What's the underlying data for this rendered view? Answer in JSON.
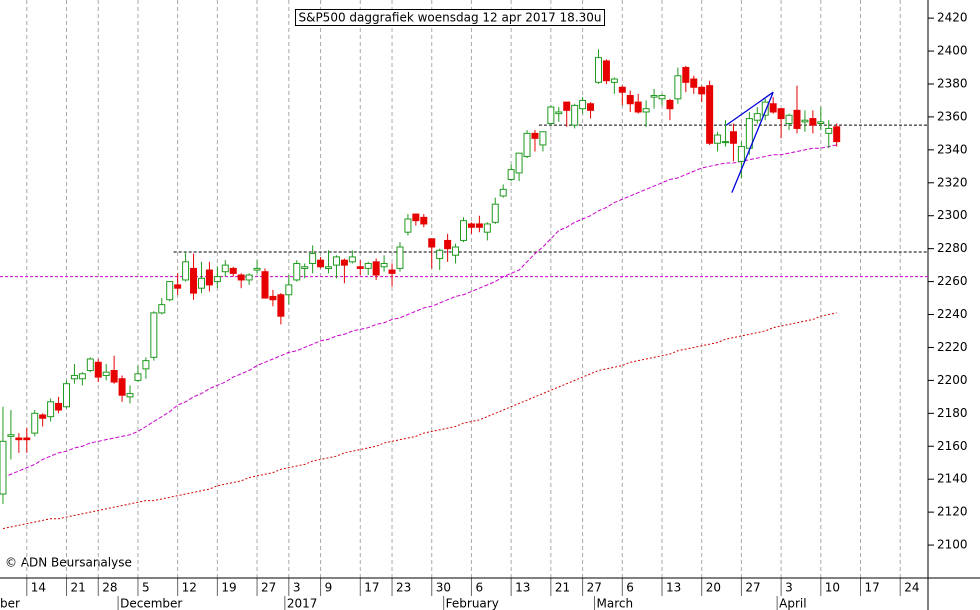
{
  "chart_data": {
    "type": "candlestick",
    "title": "S&P500 daggrafiek woensdag 12 apr 2017 18.30u",
    "copyright": "© ADN Beursanalyse",
    "categories": [
      null,
      null,
      null,
      "14",
      null,
      null,
      null,
      null,
      "21",
      null,
      null,
      null,
      "28",
      null,
      null,
      null,
      null,
      "5",
      null,
      null,
      null,
      null,
      "12",
      null,
      null,
      null,
      null,
      "19",
      null,
      null,
      null,
      null,
      "27",
      null,
      null,
      null,
      "3",
      null,
      null,
      null,
      "9",
      null,
      null,
      null,
      null,
      "17",
      null,
      null,
      null,
      "23",
      null,
      null,
      null,
      null,
      "30",
      null,
      null,
      null,
      null,
      "6",
      null,
      null,
      null,
      null,
      "13",
      null,
      null,
      null,
      null,
      "21",
      null,
      null,
      null,
      "27",
      null,
      null,
      null,
      null,
      "6",
      null,
      null,
      null,
      null,
      "13",
      null,
      null,
      null,
      null,
      "20",
      null,
      null,
      null,
      null,
      "27",
      null,
      null,
      null,
      null,
      "3",
      null,
      null,
      null,
      null,
      "10",
      null,
      null,
      null,
      null,
      "17",
      null,
      null,
      null,
      null,
      "24",
      null,
      null,
      null
    ],
    "months": [
      {
        "value": 15,
        "label": "December"
      },
      {
        "value": 36,
        "label": "2017"
      },
      {
        "value": 56,
        "label": "February"
      },
      {
        "value": 75,
        "label": "March"
      },
      {
        "value": 98,
        "label": "April"
      }
    ],
    "month_cut": "ber",
    "open": [
      2131,
      2166,
      2165,
      2165,
      2168,
      2179,
      2178,
      2186,
      2184,
      2201,
      2201,
      2206,
      2211,
      2203,
      2206,
      2201,
      2190,
      2200,
      2207,
      2214,
      2241,
      2249,
      2258,
      2261,
      2268,
      2256,
      2267,
      2260,
      2266,
      2268,
      2264,
      2261,
      2267,
      2266,
      2251,
      2252,
      2252,
      2261,
      2268,
      2271,
      2273,
      2268,
      2270,
      2273,
      2272,
      2269,
      2268,
      2272,
      2269,
      2267,
      2268,
      2290,
      2301,
      2299,
      2286,
      2274,
      2285,
      2276,
      2285,
      2295,
      2295,
      2290,
      2296,
      2312,
      2322,
      2326,
      2336,
      2350,
      2343,
      2356,
      2362,
      2369,
      2355,
      2365,
      2368,
      2381,
      2394,
      2381,
      2378,
      2373,
      2369,
      2363,
      2372,
      2371,
      2370,
      2371,
      2390,
      2383,
      2378,
      2379,
      2344,
      2345,
      2351,
      2333,
      2341,
      2358,
      2361,
      2368,
      2365,
      2356,
      2364,
      2357,
      2359,
      2356,
      2350,
      2354,
      null,
      null,
      null,
      null,
      null,
      null,
      null,
      null,
      null,
      null,
      null
    ],
    "high": [
      2184,
      2182,
      2168,
      2171,
      2182,
      2180,
      2189,
      2190,
      2200,
      2210,
      2205,
      2214,
      2213,
      2210,
      2215,
      2203,
      2197,
      2209,
      2214,
      2242,
      2250,
      2260,
      2265,
      2278,
      2277,
      2272,
      2272,
      2269,
      2273,
      2269,
      2265,
      2265,
      2273,
      2268,
      2255,
      2253,
      2264,
      2273,
      2271,
      2282,
      2275,
      2279,
      2276,
      2274,
      2279,
      2273,
      2272,
      2274,
      2276,
      2271,
      2284,
      2301,
      2301,
      2301,
      2286,
      2280,
      2289,
      2283,
      2299,
      2296,
      2300,
      2296,
      2311,
      2319,
      2331,
      2338,
      2352,
      2352,
      2351,
      2367,
      2366,
      2369,
      2368,
      2372,
      2369,
      2401,
      2395,
      2384,
      2379,
      2376,
      2374,
      2370,
      2377,
      2374,
      2371,
      2390,
      2391,
      2385,
      2379,
      2382,
      2351,
      2358,
      2356,
      2345,
      2363,
      2366,
      2371,
      2372,
      2365,
      2362,
      2379,
      2364,
      2364,
      2366,
      2358,
      2356,
      null,
      null,
      null,
      null,
      null,
      null,
      null,
      null,
      null,
      null,
      null
    ],
    "low": [
      2125,
      2152,
      2156,
      2156,
      2166,
      2172,
      2175,
      2180,
      2183,
      2198,
      2197,
      2205,
      2199,
      2200,
      2198,
      2187,
      2186,
      2199,
      2201,
      2212,
      2240,
      2248,
      2252,
      2260,
      2249,
      2253,
      2254,
      2256,
      2263,
      2263,
      2256,
      2258,
      2265,
      2250,
      2245,
      2234,
      2246,
      2260,
      2262,
      2265,
      2268,
      2265,
      2262,
      2259,
      2271,
      2264,
      2264,
      2261,
      2266,
      2257,
      2266,
      2288,
      2294,
      2293,
      2268,
      2267,
      2272,
      2271,
      2284,
      2289,
      2290,
      2285,
      2295,
      2311,
      2321,
      2321,
      2335,
      2339,
      2339,
      2355,
      2357,
      2354,
      2353,
      2362,
      2359,
      2380,
      2380,
      2374,
      2367,
      2363,
      2362,
      2354,
      2365,
      2367,
      2358,
      2368,
      2375,
      2374,
      2369,
      2343,
      2339,
      2342,
      2333,
      2323,
      2337,
      2356,
      2358,
      2362,
      2347,
      2352,
      2350,
      2351,
      2350,
      2352,
      2341,
      2342,
      null,
      null,
      null,
      null,
      null,
      null,
      null,
      null,
      null,
      null,
      null
    ],
    "close": [
      2163,
      2167,
      2164,
      2164,
      2180,
      2177,
      2187,
      2182,
      2198,
      2203,
      2204,
      2213,
      2202,
      2205,
      2199,
      2191,
      2192,
      2204,
      2212,
      2241,
      2246,
      2260,
      2256,
      2272,
      2253,
      2262,
      2258,
      2263,
      2270,
      2265,
      2261,
      2264,
      2268,
      2250,
      2249,
      2239,
      2258,
      2271,
      2269,
      2277,
      2269,
      2269,
      2275,
      2270,
      2275,
      2268,
      2271,
      2264,
      2271,
      2265,
      2281,
      2298,
      2297,
      2295,
      2281,
      2279,
      2280,
      2281,
      2297,
      2293,
      2293,
      2295,
      2307,
      2316,
      2328,
      2338,
      2350,
      2347,
      2351,
      2366,
      2363,
      2364,
      2367,
      2370,
      2364,
      2396,
      2382,
      2383,
      2375,
      2368,
      2363,
      2365,
      2373,
      2373,
      2365,
      2385,
      2381,
      2378,
      2374,
      2344,
      2349,
      2345,
      2344,
      2342,
      2359,
      2362,
      2369,
      2363,
      2359,
      2361,
      2353,
      2358,
      2355,
      2357,
      2353,
      2345,
      null,
      null,
      null,
      null,
      null,
      null,
      null,
      null,
      null,
      null,
      null
    ],
    "up_color": "#1f9a1f",
    "down_color": "#e60000",
    "averages": [
      {
        "color": "#cc00cc",
        "dash": "dashed",
        "values": [
          2141,
          2143,
          2145,
          2147,
          2149,
          2152,
          2154,
          2156,
          2157,
          2159,
          2160,
          2162,
          2163,
          2164,
          2165,
          2166,
          2167,
          2169,
          2172,
          2175,
          2178,
          2181,
          2185,
          2187,
          2190,
          2192,
          2195,
          2197,
          2199,
          2202,
          2204,
          2206,
          2209,
          2211,
          2213,
          2215,
          2217,
          2218,
          2220,
          2222,
          2224,
          2225,
          2227,
          2228,
          2230,
          2231,
          2232,
          2234,
          2235,
          2237,
          2238,
          2240,
          2242,
          2244,
          2245,
          2247,
          2249,
          2251,
          2252,
          2254,
          2256,
          2258,
          2260,
          2263,
          2265,
          2267,
          2272,
          2277,
          2281,
          2286,
          2291,
          2293,
          2296,
          2298,
          2300,
          2303,
          2305,
          2308,
          2310,
          2312,
          2314,
          2316,
          2318,
          2320,
          2322,
          2323,
          2325,
          2327,
          2329,
          2330,
          2331,
          2332,
          2332,
          2333,
          2334,
          2335,
          2336,
          2337,
          2337,
          2338,
          2339,
          2340,
          2341,
          2341,
          2342,
          2343,
          null,
          null,
          null,
          null,
          null,
          null,
          null,
          null,
          null,
          null,
          null
        ]
      },
      {
        "color": "#d40000",
        "dash": "dotted",
        "values": [
          2110,
          2111,
          2112,
          2113,
          2114,
          2115,
          2116,
          2116,
          2117,
          2118,
          2119,
          2120,
          2121,
          2122,
          2123,
          2124,
          2125,
          2126,
          2127,
          2127,
          2128,
          2129,
          2130,
          2131,
          2132,
          2133,
          2134,
          2136,
          2137,
          2138,
          2139,
          2141,
          2142,
          2143,
          2144,
          2146,
          2147,
          2148,
          2149,
          2151,
          2152,
          2153,
          2154,
          2156,
          2157,
          2158,
          2159,
          2160,
          2162,
          2163,
          2164,
          2165,
          2166,
          2168,
          2169,
          2170,
          2171,
          2172,
          2174,
          2175,
          2176,
          2178,
          2180,
          2182,
          2184,
          2186,
          2188,
          2190,
          2192,
          2194,
          2196,
          2198,
          2200,
          2202,
          2204,
          2206,
          2207,
          2208,
          2209,
          2211,
          2212,
          2213,
          2214,
          2215,
          2216,
          2218,
          2219,
          2220,
          2221,
          2222,
          2223,
          2225,
          2226,
          2227,
          2228,
          2229,
          2230,
          2232,
          2233,
          2234,
          2235,
          2236,
          2237,
          2239,
          2240,
          2241,
          null,
          null,
          null,
          null,
          null,
          null,
          null,
          null,
          null,
          null,
          null
        ]
      }
    ],
    "levels": [
      {
        "value": 2263,
        "color": "#cc00cc"
      },
      {
        "value": 2278,
        "from": 22,
        "color": "#000000"
      },
      {
        "value": 2355,
        "from": 68,
        "color": "#000000"
      }
    ],
    "trendlines": [
      {
        "x": [
          92.3,
          97.5
        ],
        "values": [
          2314,
          2375
        ],
        "color": "#0000dd"
      },
      {
        "x": [
          91.6,
          97.5
        ],
        "values": [
          2355,
          2375
        ],
        "color": "#0000dd"
      }
    ],
    "ylim": [
      2080,
      2431
    ],
    "yticks": [
      2100,
      2120,
      2140,
      2160,
      2180,
      2200,
      2220,
      2240,
      2260,
      2280,
      2300,
      2320,
      2340,
      2360,
      2380,
      2400,
      2420
    ],
    "grid": true
  }
}
